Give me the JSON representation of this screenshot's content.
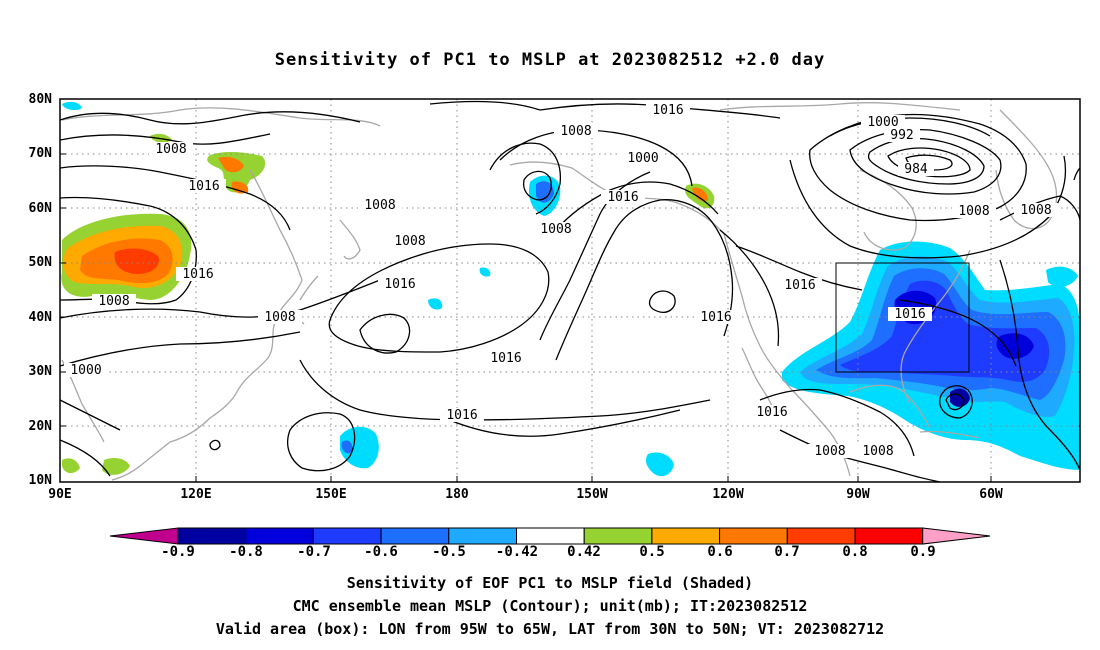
{
  "title": "Sensitivity of PC1 to MSLP at 2023082512 +2.0 day",
  "latitude_labels": [
    "80N",
    "70N",
    "60N",
    "50N",
    "40N",
    "30N",
    "20N",
    "10N"
  ],
  "longitude_labels": [
    "90E",
    "120E",
    "150E",
    "180",
    "150W",
    "120W",
    "90W",
    "60W"
  ],
  "isobar_labels": [
    "1016",
    "1008",
    "1008",
    "1016",
    "1000",
    "1000",
    "992",
    "984",
    "1008",
    "1016",
    "1008",
    "1008",
    "1016",
    "1016",
    "1008",
    "1016",
    "1008",
    "1008",
    "1016",
    "1016",
    "1016",
    "1016",
    "1016",
    "1016",
    "1000",
    "1008",
    "1008",
    "1008"
  ],
  "colorbar": {
    "labels": [
      "-0.9",
      "-0.8",
      "-0.7",
      "-0.6",
      "-0.5",
      "-0.42",
      "0.42",
      "0.5",
      "0.6",
      "0.7",
      "0.8",
      "0.9"
    ],
    "colors": [
      "#c0008c",
      "#0000a0",
      "#0000dc",
      "#1e3cff",
      "#1e6eff",
      "#1eaaff",
      "#00dcff",
      "#ffffff",
      "#96d232",
      "#ffaa00",
      "#ff7800",
      "#ff3c00",
      "#ff0000",
      "#ffa0c8"
    ]
  },
  "captions": {
    "line1": "Sensitivity of EOF PC1 to MSLP field (Shaded)",
    "line2": "CMC ensemble mean MSLP (Contour); unit(mb); IT:2023082512",
    "line3": "Valid area (box): LON from 95W to 65W, LAT from 30N to 50N; VT: 2023082712"
  }
}
